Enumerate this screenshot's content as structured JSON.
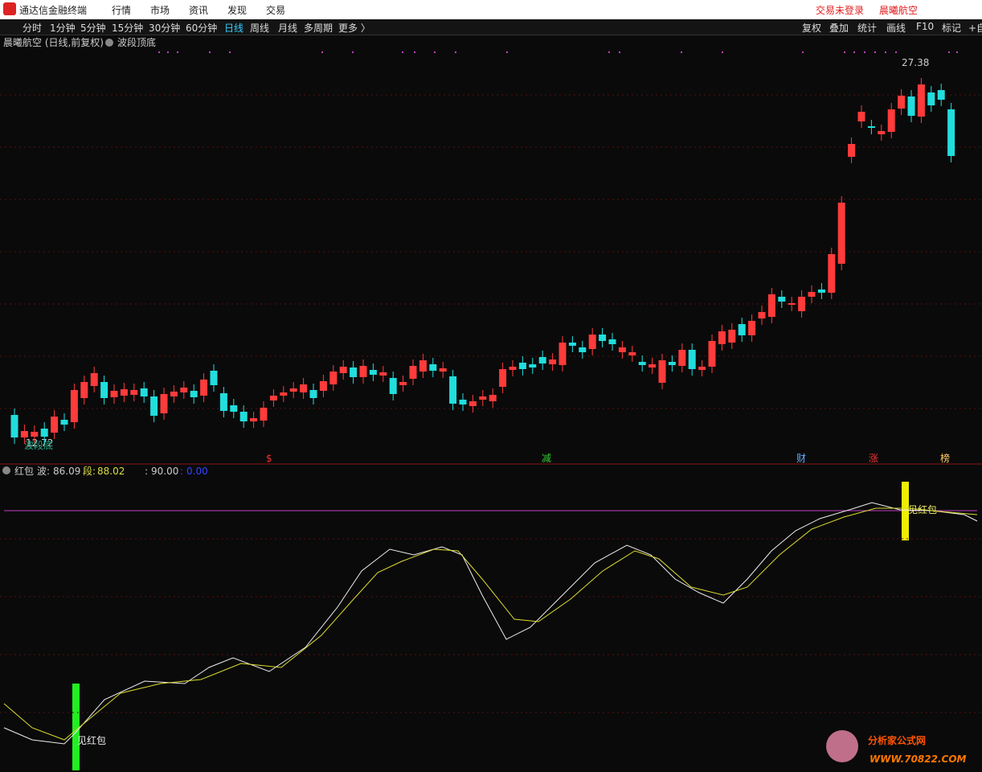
{
  "menu": {
    "app": "通达信金融终端",
    "items": [
      "行情",
      "市场",
      "资讯",
      "发现",
      "交易"
    ],
    "right": [
      "交易未登录",
      "晨曦航空"
    ]
  },
  "toolbar": {
    "periods": [
      "分时",
      "1分钟",
      "5分钟",
      "15分钟",
      "30分钟",
      "60分钟",
      "日线",
      "周线",
      "月线",
      "多周期",
      "更多 〉"
    ],
    "tools": [
      "复权",
      "叠加",
      "统计",
      "画线",
      "F10",
      "标记",
      "+自"
    ]
  },
  "main_chart": {
    "title": "晨曦航空 (日线,前复权)",
    "indicator": "波段顶底",
    "high_label": "27.38",
    "low_label": "12.72",
    "low_note": "波段底",
    "event_marks": [
      "$",
      "减",
      "财",
      "涨",
      "榜"
    ]
  },
  "sub_chart": {
    "name": "红包",
    "items": [
      {
        "label": "波:",
        "value": "86.09"
      },
      {
        "label": "段:",
        "value": "88.02"
      },
      {
        "label": ":",
        "value": "90.00"
      },
      {
        "label": ":",
        "value": "0.00"
      }
    ],
    "signals": [
      "见红包",
      "见红包"
    ]
  },
  "watermark": {
    "title": "分析家公式网",
    "url": "WWW.70822.COM"
  }
}
